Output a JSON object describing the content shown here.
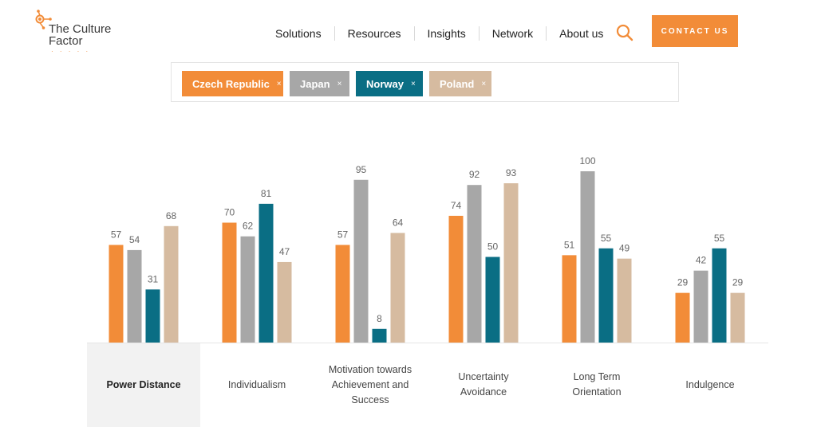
{
  "header": {
    "logo_line1": "The Culture",
    "logo_line2": "Factor",
    "nav": [
      "Solutions",
      "Resources",
      "Insights",
      "Network",
      "About us"
    ],
    "contact_label": "CONTACT US"
  },
  "filters": [
    {
      "label": "Czech Republic",
      "remove": "×",
      "color": "#f28c38"
    },
    {
      "label": "Japan",
      "remove": "×",
      "color": "#a7a7a7"
    },
    {
      "label": "Norway",
      "remove": "×",
      "color": "#0a6e84"
    },
    {
      "label": "Poland",
      "remove": "×",
      "color": "#d6bba0"
    }
  ],
  "chart_data": {
    "type": "bar",
    "title": "",
    "xlabel": "",
    "ylabel": "",
    "ylim": [
      0,
      100
    ],
    "grid": false,
    "selected_category": "Power Distance",
    "categories": [
      "Power Distance",
      "Individualism",
      "Motivation towards Achievement and Success",
      "Uncertainty Avoidance",
      "Long Term Orientation",
      "Indulgence"
    ],
    "series": [
      {
        "name": "Czech Republic",
        "color": "#f28c38",
        "values": [
          57,
          70,
          57,
          74,
          51,
          29
        ]
      },
      {
        "name": "Japan",
        "color": "#a7a7a7",
        "values": [
          54,
          62,
          95,
          92,
          100,
          42
        ]
      },
      {
        "name": "Norway",
        "color": "#0a6e84",
        "values": [
          31,
          81,
          8,
          50,
          55,
          55
        ]
      },
      {
        "name": "Poland",
        "color": "#d6bba0",
        "values": [
          68,
          47,
          64,
          93,
          49,
          29
        ]
      }
    ]
  }
}
